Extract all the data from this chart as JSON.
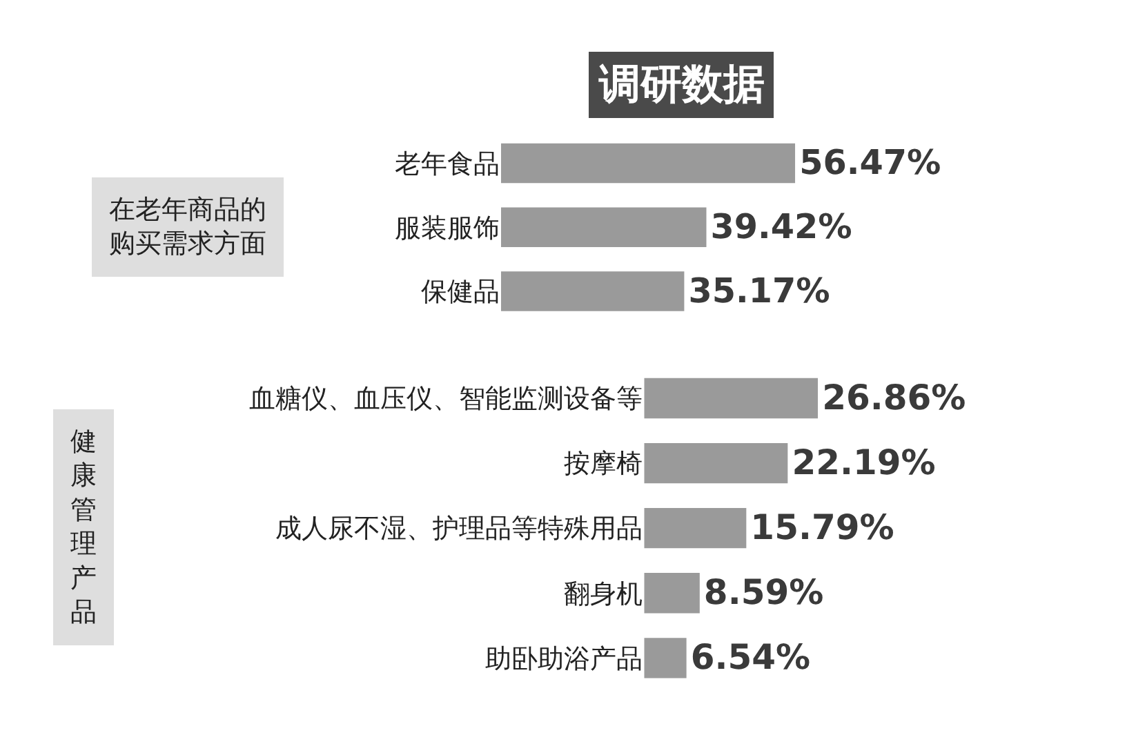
{
  "chart_data": [
    {
      "type": "bar",
      "orientation": "horizontal",
      "title": "调研数据",
      "ylabel": "在老年商品的购买需求方面",
      "tick_labels": "y",
      "color": "#9a9a9a",
      "categories": [
        "老年食品",
        "服装服饰",
        "保健品"
      ],
      "values": [
        56.47,
        39.42,
        35.17
      ],
      "value_labels": [
        "56.47%",
        "39.42%",
        "35.17%"
      ]
    },
    {
      "type": "bar",
      "orientation": "horizontal",
      "ylabel": "健康管理产品",
      "tick_labels": "y",
      "color": "#9a9a9a",
      "categories": [
        "血糖仪、血压仪、智能监测设备等",
        "按摩椅",
        "成人尿不湿、护理品等特殊用品",
        "翻身机",
        "助卧助浴产品"
      ],
      "values": [
        26.86,
        22.19,
        15.79,
        8.59,
        6.54
      ],
      "value_labels": [
        "26.86%",
        "22.19%",
        "15.79%",
        "8.59%",
        "6.54%"
      ]
    }
  ]
}
